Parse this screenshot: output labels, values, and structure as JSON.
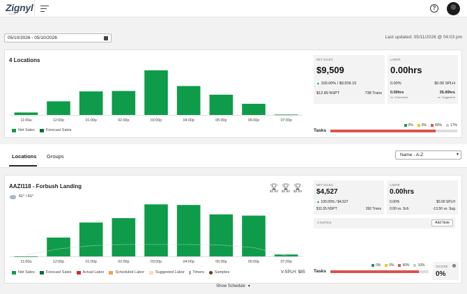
{
  "header": {
    "logo": "Zignyl",
    "logo_sub": "LABOR",
    "menu_icon": "hamburger-icon",
    "help_icon": "question-icon",
    "help_glyph": "?",
    "avatar": "user-avatar"
  },
  "toolbar": {
    "date_range": "05/10/2026 - 05/10/2026",
    "last_updated": "Last updated: 05/11/2026 @ 04:03 pm"
  },
  "summary": {
    "title": "4 Locations",
    "net_sales": {
      "label": "NET SALES",
      "value": "$9,509",
      "pct": "100.00% / $9,509.15",
      "nspt": "$12.89 NSPT",
      "trans": "738 Trans"
    },
    "labor": {
      "label": "LABOR",
      "value": "0.00hrs",
      "pct": "0.00%",
      "splh": "$0.00 SPLH",
      "vs_scheduled_value": "0.00hrs",
      "vs_scheduled_label": "vs. Scheduled",
      "vs_suggested_value": "35.00hrs",
      "vs_suggested_label": "vs. Suggested"
    },
    "tasks": {
      "label": "Tasks",
      "fill_pct": 0.83,
      "legend": [
        {
          "label": "0%",
          "color": "#1a9c4b"
        },
        {
          "label": "0%",
          "color": "#f0c419"
        },
        {
          "label": "83%",
          "color": "#d9534f"
        },
        {
          "label": "17%",
          "color": "#cccccc"
        }
      ]
    },
    "legend": [
      "Net Sales",
      "Forecast Sales"
    ]
  },
  "tabs": {
    "items": [
      "Locations",
      "Groups"
    ],
    "sort_value": "Name - A-Z"
  },
  "location": {
    "title": "AAZI118 - Forbush Landing",
    "weather": "61° / 61°",
    "trophies": [
      "$1.00",
      "$1.50",
      "$2.00"
    ],
    "net_sales": {
      "label": "NET SALES",
      "value": "$4,527",
      "pct": "100.00% / $4,527",
      "nspt": "$11.55 NSPT",
      "trans": "392 Trans"
    },
    "labor": {
      "label": "LABOR",
      "value": "0.00hrs",
      "pct": "0.00%",
      "splh": "$0.00 SPLH",
      "vs_sch": "0.00 vs. Sch",
      "vs_sug": "-13.50 vs. Sug"
    },
    "notes_label": "0 NOTES",
    "add_note": "Add Note",
    "legend": [
      "Net Sales",
      "Forecast Sales",
      "Actual Labor",
      "Scheduled Labor",
      "Suggested Labor",
      "Timers",
      "Samples"
    ],
    "vsplh": "V-SPLH: $85",
    "tasks": {
      "label": "Tasks",
      "fill_pct": 0.9,
      "legend": [
        {
          "label": "0%",
          "color": "#1a9c4b"
        },
        {
          "label": "0%",
          "color": "#f0c419"
        },
        {
          "label": "90%",
          "color": "#d9534f"
        },
        {
          "label": "10%",
          "color": "#cccccc"
        }
      ]
    },
    "jscore": {
      "label": "JSCORE",
      "value": "0%",
      "info": "i"
    }
  },
  "footer": {
    "show_schedule": "Show Schedule"
  },
  "chart_data": [
    {
      "type": "bar",
      "categories": [
        "11:00a",
        "12:00p",
        "01:00p",
        "02:00p",
        "03:00p",
        "04:00p",
        "05:00p",
        "06:00p",
        "07:00p"
      ],
      "series": [
        {
          "name": "Net Sales",
          "values": [
            60,
            330,
            570,
            580,
            1080,
            700,
            490,
            270,
            10
          ]
        }
      ],
      "colors": {
        "bar": "#0e9c4a"
      },
      "ylim": [
        0,
        1180
      ]
    },
    {
      "type": "bar",
      "categories": [
        "11:00a",
        "12:00p",
        "01:00p",
        "02:00p",
        "03:00p",
        "04:00p",
        "05:00p",
        "06:00p",
        "07:00p"
      ],
      "series": [
        {
          "name": "Net Sales",
          "values": [
            0,
            300,
            540,
            610,
            830,
            820,
            670,
            650,
            30
          ]
        },
        {
          "name": "Forecast Sales",
          "values": [
            20,
            120,
            170,
            190,
            190,
            190,
            180,
            140,
            10
          ]
        }
      ],
      "colors": {
        "bar": "#0e9c4a",
        "forecast": "#c9d8c9"
      },
      "ylim": [
        0,
        900
      ]
    }
  ]
}
